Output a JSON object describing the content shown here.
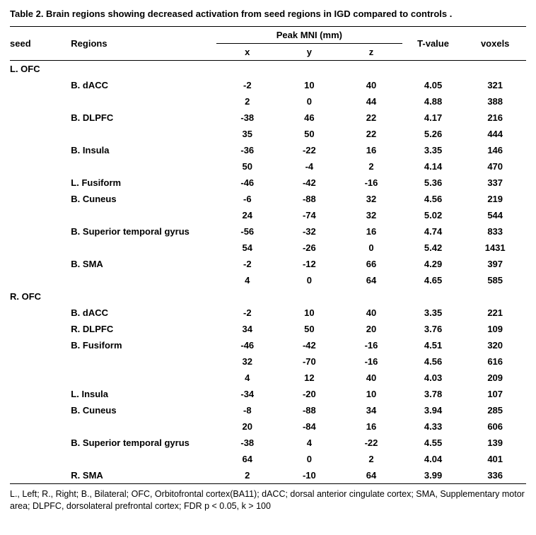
{
  "title": "Table 2. Brain regions showing decreased activation from seed regions in IGD compared to controls .",
  "headers": {
    "seed": "seed",
    "regions": "Regions",
    "peak": "Peak MNI (mm)",
    "x": "x",
    "y": "y",
    "z": "z",
    "tvalue": "T-value",
    "voxels": "voxels"
  },
  "seed1": "L. OFC",
  "seed2": "R. OFC",
  "s1": [
    {
      "region": "B. dACC",
      "x": "-2",
      "y": "10",
      "z": "40",
      "t": "4.05",
      "v": "321"
    },
    {
      "region": "",
      "x": "2",
      "y": "0",
      "z": "44",
      "t": "4.88",
      "v": "388"
    },
    {
      "region": "B. DLPFC",
      "x": "-38",
      "y": "46",
      "z": "22",
      "t": "4.17",
      "v": "216"
    },
    {
      "region": "",
      "x": "35",
      "y": "50",
      "z": "22",
      "t": "5.26",
      "v": "444"
    },
    {
      "region": "B. Insula",
      "x": "-36",
      "y": "-22",
      "z": "16",
      "t": "3.35",
      "v": "146"
    },
    {
      "region": "",
      "x": "50",
      "y": "-4",
      "z": "2",
      "t": "4.14",
      "v": "470"
    },
    {
      "region": "L. Fusiform",
      "x": "-46",
      "y": "-42",
      "z": "-16",
      "t": "5.36",
      "v": "337"
    },
    {
      "region": "B. Cuneus",
      "x": "-6",
      "y": "-88",
      "z": "32",
      "t": "4.56",
      "v": "219"
    },
    {
      "region": "",
      "x": "24",
      "y": "-74",
      "z": "32",
      "t": "5.02",
      "v": "544"
    },
    {
      "region": "B. Superior temporal gyrus",
      "x": "-56",
      "y": "-32",
      "z": "16",
      "t": "4.74",
      "v": "833"
    },
    {
      "region": "",
      "x": "54",
      "y": "-26",
      "z": "0",
      "t": "5.42",
      "v": "1431"
    },
    {
      "region": "B. SMA",
      "x": "-2",
      "y": "-12",
      "z": "66",
      "t": "4.29",
      "v": "397"
    },
    {
      "region": "",
      "x": "4",
      "y": "0",
      "z": "64",
      "t": "4.65",
      "v": "585"
    }
  ],
  "s2": [
    {
      "region": "B. dACC",
      "x": "-2",
      "y": "10",
      "z": "40",
      "t": "3.35",
      "v": "221"
    },
    {
      "region": "R. DLPFC",
      "x": "34",
      "y": "50",
      "z": "20",
      "t": "3.76",
      "v": "109"
    },
    {
      "region": "B. Fusiform",
      "x": "-46",
      "y": "-42",
      "z": "-16",
      "t": "4.51",
      "v": "320"
    },
    {
      "region": "",
      "x": "32",
      "y": "-70",
      "z": "-16",
      "t": "4.56",
      "v": "616"
    },
    {
      "region": "",
      "x": "4",
      "y": "12",
      "z": "40",
      "t": "4.03",
      "v": "209"
    },
    {
      "region": "L. Insula",
      "x": "-34",
      "y": "-20",
      "z": "10",
      "t": "3.78",
      "v": "107"
    },
    {
      "region": "B. Cuneus",
      "x": "-8",
      "y": "-88",
      "z": "34",
      "t": "3.94",
      "v": "285"
    },
    {
      "region": "",
      "x": "20",
      "y": "-84",
      "z": "16",
      "t": "4.33",
      "v": "606"
    },
    {
      "region": "B. Superior temporal gyrus",
      "x": "-38",
      "y": "4",
      "z": "-22",
      "t": "4.55",
      "v": "139"
    },
    {
      "region": "",
      "x": "64",
      "y": "0",
      "z": "2",
      "t": "4.04",
      "v": "401"
    },
    {
      "region": "R. SMA",
      "x": "2",
      "y": "-10",
      "z": "64",
      "t": "3.99",
      "v": "336"
    }
  ],
  "footnote": "L., Left; R., Right;  B., Bilateral; OFC, Orbitofrontal cortex(BA11);  dACC;  dorsal anterior cingulate cortex; SMA, Supplementary motor area;  DLPFC, dorsolateral prefrontal cortex;   FDR  p < 0.05, k > 100"
}
